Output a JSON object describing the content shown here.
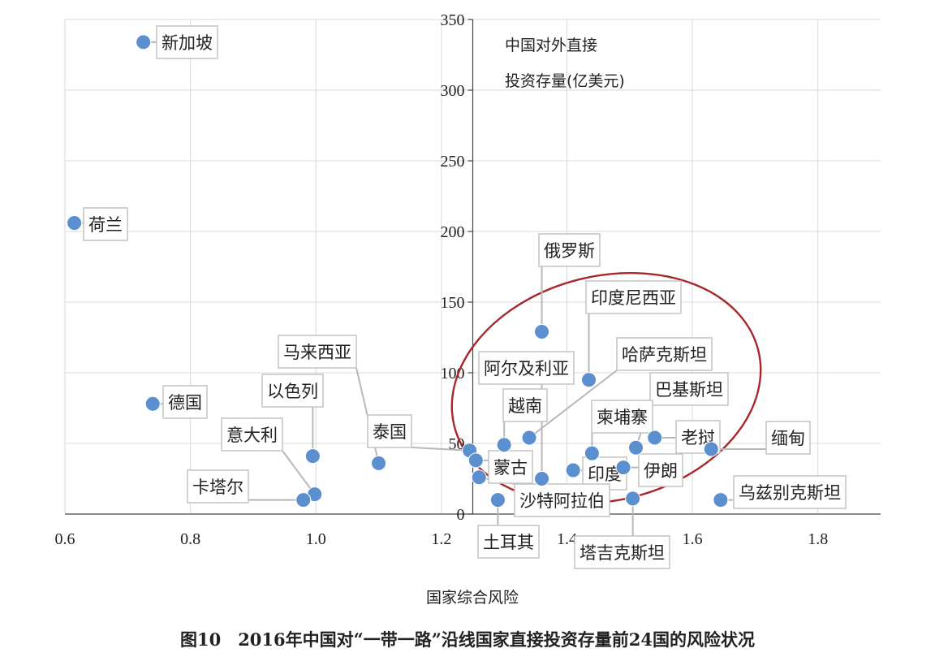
{
  "chart_data": {
    "type": "scatter",
    "annotation": [
      "中国对外直接",
      "投资存量(亿美元)"
    ],
    "xlabel": "国家综合风险",
    "caption": "图10　2016年中国对“一带一路”沿线国家直接投资存量前24国的风险状况",
    "xlim": [
      0.6,
      1.9
    ],
    "ylim": [
      0,
      350
    ],
    "x_ticks": [
      "0.6",
      "0.8",
      "1.0",
      "1.2",
      "1.4",
      "1.6",
      "1.8"
    ],
    "y_ticks": [
      "0",
      "50",
      "100",
      "150",
      "200",
      "250",
      "300",
      "350"
    ],
    "grid": true,
    "point_color": "#5b8fd0",
    "ellipse_color": "#a8272d",
    "points": [
      {
        "name": "新加坡",
        "x": 0.725,
        "y": 334
      },
      {
        "name": "荷兰",
        "x": 0.615,
        "y": 206
      },
      {
        "name": "德国",
        "x": 0.74,
        "y": 78
      },
      {
        "name": "马来西亚",
        "x": 1.1,
        "y": 36
      },
      {
        "name": "以色列",
        "x": 0.995,
        "y": 41
      },
      {
        "name": "意大利",
        "x": 0.998,
        "y": 14
      },
      {
        "name": "卡塔尔",
        "x": 0.98,
        "y": 10
      },
      {
        "name": "泰国",
        "x": 1.245,
        "y": 45
      },
      {
        "name": "蒙古",
        "x": 1.255,
        "y": 38
      },
      {
        "name": "俄罗斯",
        "x": 1.36,
        "y": 129
      },
      {
        "name": "印度尼西亚",
        "x": 1.435,
        "y": 95
      },
      {
        "name": "阿尔及利亚",
        "x": 1.36,
        "y": 25
      },
      {
        "name": "越南",
        "x": 1.3,
        "y": 49
      },
      {
        "name": "哈萨克斯坦",
        "x": 1.34,
        "y": 54
      },
      {
        "name": "巴基斯坦",
        "x": 1.51,
        "y": 47
      },
      {
        "name": "柬埔寨",
        "x": 1.44,
        "y": 43
      },
      {
        "name": "老挝",
        "x": 1.54,
        "y": 54
      },
      {
        "name": "缅甸",
        "x": 1.63,
        "y": 46
      },
      {
        "name": "印度",
        "x": 1.41,
        "y": 31
      },
      {
        "name": "伊朗",
        "x": 1.49,
        "y": 33
      },
      {
        "name": "沙特阿拉伯",
        "x": 1.26,
        "y": 26
      },
      {
        "name": "土耳其",
        "x": 1.29,
        "y": 10
      },
      {
        "name": "塔吉克斯坦",
        "x": 1.505,
        "y": 11
      },
      {
        "name": "乌兹别克斯坦",
        "x": 1.645,
        "y": 10
      }
    ]
  }
}
